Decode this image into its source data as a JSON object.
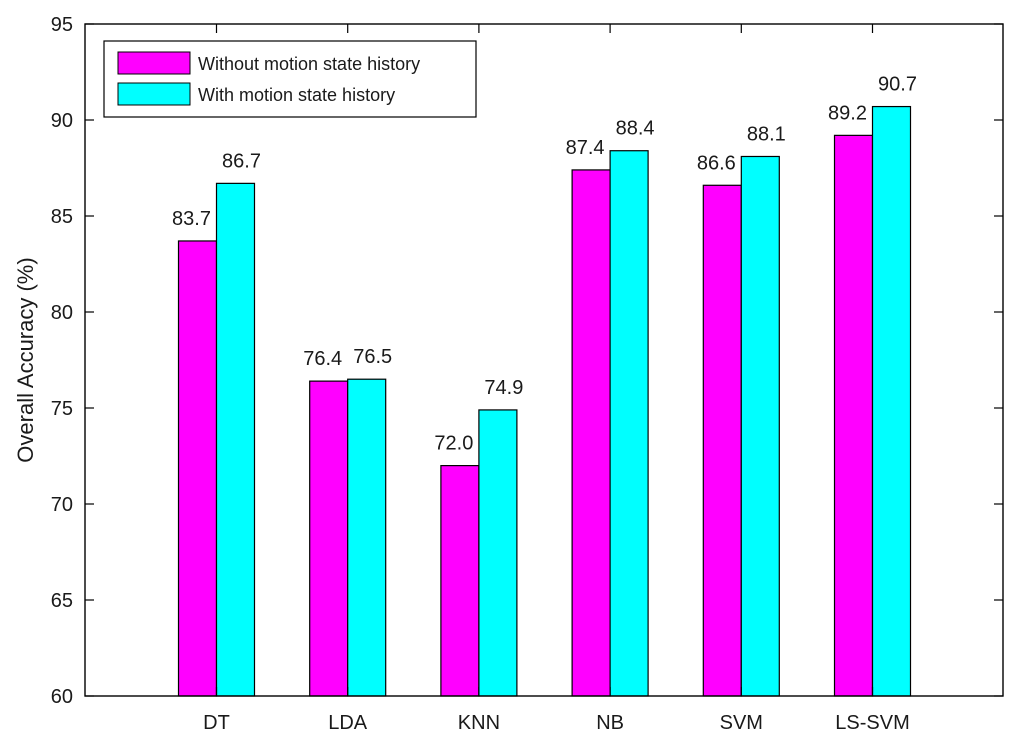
{
  "chart_data": {
    "type": "bar",
    "title": "",
    "xlabel": "",
    "ylabel": "Overall Accuracy (%)",
    "ylim": [
      60,
      95
    ],
    "yticks": [
      60,
      65,
      70,
      75,
      80,
      85,
      90,
      95
    ],
    "grid": false,
    "legend_position": "top-left",
    "categories": [
      "DT",
      "LDA",
      "KNN",
      "NB",
      "SVM",
      "LS-SVM"
    ],
    "series": [
      {
        "name": "Without motion state history",
        "color": "#ff00ff",
        "values": [
          83.7,
          76.4,
          72.0,
          87.4,
          86.6,
          89.2
        ],
        "labels": [
          "83.7",
          "76.4",
          "72.0",
          "87.4",
          "86.6",
          "89.2"
        ]
      },
      {
        "name": "With motion state history",
        "color": "#00ffff",
        "values": [
          86.7,
          76.5,
          74.9,
          88.4,
          88.1,
          90.7
        ],
        "labels": [
          "86.7",
          "76.5",
          "74.9",
          "88.4",
          "88.1",
          "90.7"
        ]
      }
    ]
  }
}
